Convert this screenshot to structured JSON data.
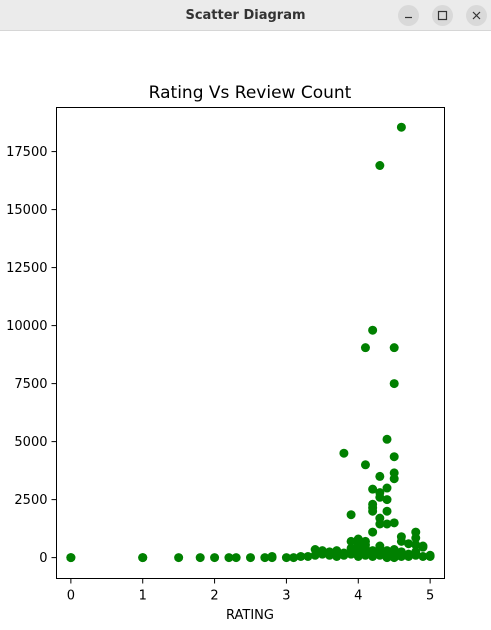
{
  "window": {
    "title": "Scatter Diagram",
    "controls": {
      "minimize_icon": "minimize-icon",
      "maximize_icon": "maximize-icon",
      "close_icon": "close-icon"
    }
  },
  "chart_data": {
    "type": "scatter",
    "title": "Rating Vs Review Count",
    "xlabel": "RATING",
    "ylabel": "",
    "xlim": [
      -0.2,
      5.2
    ],
    "ylim": [
      -900,
      19400
    ],
    "xticks": [
      0,
      1,
      2,
      3,
      4,
      5
    ],
    "yticks": [
      0,
      2500,
      5000,
      7500,
      10000,
      12500,
      15000,
      17500
    ],
    "grid": false,
    "legend": "none",
    "marker_color": "#008000",
    "series": [
      {
        "x": [
          0,
          0,
          1,
          1,
          1.5,
          1.8,
          2.0,
          2.2,
          2.3,
          2.5,
          2.7,
          2.8,
          2.8,
          3.0,
          3.1,
          3.2,
          3.3,
          3.4,
          3.4,
          3.5,
          3.5,
          3.6,
          3.6,
          3.7,
          3.7,
          3.8,
          3.8,
          3.9,
          3.9,
          4.0,
          4.0,
          4.0,
          4.1,
          4.1,
          4.1,
          4.2,
          4.2,
          4.3,
          4.3,
          4.3,
          4.4,
          4.4,
          4.5,
          4.5,
          4.6,
          4.6,
          4.7,
          4.7,
          4.8,
          4.8,
          4.9,
          5.0,
          5.0,
          3.8,
          3.9,
          3.9,
          4.0,
          4.0,
          4.1,
          4.1,
          4.1,
          4.2,
          4.2,
          4.2,
          4.2,
          4.2,
          4.3,
          4.3,
          4.3,
          4.3,
          4.3,
          4.4,
          4.4,
          4.4,
          4.4,
          4.4,
          4.5,
          4.5,
          4.5,
          4.5,
          4.6,
          4.6,
          4.7,
          4.8,
          4.8,
          4.8,
          4.9,
          4.9,
          4.1,
          4.2,
          4.3,
          4.5,
          4.5,
          4.6,
          4.4,
          4.5
        ],
        "y": [
          0,
          0,
          0,
          0,
          0,
          0,
          0,
          0,
          0,
          0,
          0,
          0,
          50,
          0,
          0,
          50,
          50,
          100,
          350,
          150,
          300,
          100,
          250,
          50,
          300,
          100,
          200,
          150,
          400,
          50,
          300,
          500,
          100,
          250,
          400,
          50,
          300,
          100,
          350,
          500,
          50,
          300,
          100,
          350,
          50,
          250,
          50,
          150,
          100,
          250,
          50,
          50,
          100,
          4500,
          1850,
          700,
          600,
          800,
          4000,
          700,
          550,
          2950,
          2300,
          2150,
          2000,
          1100,
          3500,
          2800,
          2600,
          1700,
          1450,
          5100,
          3000,
          2500,
          2000,
          1450,
          4350,
          3650,
          3400,
          1500,
          900,
          700,
          600,
          1100,
          850,
          550,
          500,
          450,
          9050,
          9800,
          16900,
          9050,
          7500,
          18550,
          0,
          0
        ]
      }
    ]
  }
}
